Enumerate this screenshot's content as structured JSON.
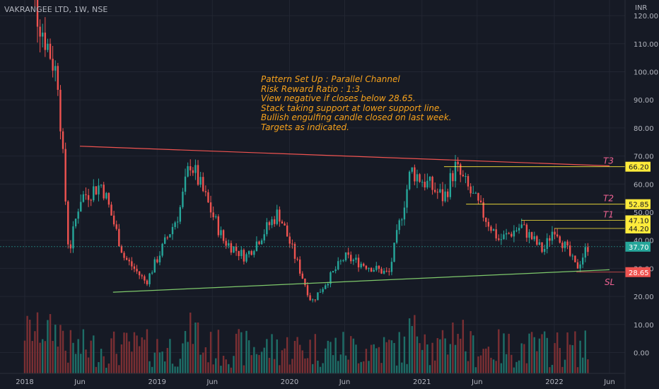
{
  "header": {
    "symbol": "VAKRANGEE LTD, 1W, NSE",
    "currency": "INR"
  },
  "annotation_lines": [
    "Pattern Set Up : Parallel Channel",
    "Risk Reward Ratio : 1:3.",
    "View negative if closes below 28.65.",
    "Stack taking support at lower support line.",
    "Bullish engulfing candle closed on last week.",
    "Targets as indicated."
  ],
  "colors": {
    "background": "#161a25",
    "grid": "#222632",
    "up": "#26a69a",
    "down": "#ef5350",
    "volume_up": "#1e6e67",
    "volume_down": "#7a2f33",
    "resistance_line": "#ef5350",
    "support_line": "#7ec86b",
    "target_label_bg": "#ffeb3b",
    "annotation": "#f7a21b",
    "current_price_bg": "#26a69a",
    "stoploss_bg": "#ef5350"
  },
  "chart_data": {
    "type": "candlestick",
    "title": "VAKRANGEE LTD, 1W, NSE",
    "ylabel": "INR",
    "ylim": [
      -4,
      123
    ],
    "price_ticks": [
      "120.00",
      "110.00",
      "100.00",
      "90.00",
      "80.00",
      "70.00",
      "60.00",
      "50.00",
      "40.00",
      "30.00",
      "20.00",
      "10.00",
      "0.00"
    ],
    "x_ticks": [
      "2018",
      "Jun",
      "2019",
      "Jun",
      "2020",
      "Jun",
      "2021",
      "Jun",
      "2022",
      "Jun"
    ],
    "x_tick_dates": [
      "2018-01",
      "2018-06",
      "2019-01",
      "2019-06",
      "2020-01",
      "2020-06",
      "2021-01",
      "2021-06",
      "2022-01",
      "2022-06"
    ],
    "price_path": [
      {
        "date": "2018-01",
        "value": 135
      },
      {
        "date": "2018-04",
        "value": 98
      },
      {
        "date": "2018-05",
        "value": 35
      },
      {
        "date": "2018-06",
        "value": 55
      },
      {
        "date": "2018-08",
        "value": 60
      },
      {
        "date": "2018-10",
        "value": 34
      },
      {
        "date": "2018-12",
        "value": 25
      },
      {
        "date": "2019-03",
        "value": 50
      },
      {
        "date": "2019-04",
        "value": 68
      },
      {
        "date": "2019-07",
        "value": 40
      },
      {
        "date": "2019-09",
        "value": 34
      },
      {
        "date": "2019-12",
        "value": 50
      },
      {
        "date": "2020-03",
        "value": 18
      },
      {
        "date": "2020-06",
        "value": 34
      },
      {
        "date": "2020-10",
        "value": 28
      },
      {
        "date": "2020-12",
        "value": 65
      },
      {
        "date": "2021-03",
        "value": 55
      },
      {
        "date": "2021-04",
        "value": 66
      },
      {
        "date": "2021-08",
        "value": 40
      },
      {
        "date": "2021-10",
        "value": 45
      },
      {
        "date": "2021-12",
        "value": 36
      },
      {
        "date": "2022-01",
        "value": 45
      },
      {
        "date": "2022-03",
        "value": 30
      },
      {
        "date": "2022-04",
        "value": 37.7
      }
    ],
    "channel_lines": [
      {
        "name": "resistance",
        "from": {
          "date": "2018-06",
          "value": 73.5
        },
        "to": {
          "date": "2022-06",
          "value": 66.5
        }
      },
      {
        "name": "support",
        "from": {
          "date": "2018-09",
          "value": 21.5
        },
        "to": {
          "date": "2022-06",
          "value": 29.5
        }
      }
    ],
    "targets": [
      {
        "name": "T3",
        "value": 66.2,
        "label": "66.20",
        "from": "2021-03"
      },
      {
        "name": "T2",
        "value": 52.85,
        "label": "52.85",
        "from": "2021-05"
      },
      {
        "name": "T1",
        "value": 47.1,
        "label": "47.10",
        "from": "2021-10"
      },
      {
        "name": "",
        "value": 44.2,
        "label": "44.20",
        "from": "2022-01"
      }
    ],
    "current_price": {
      "value": 37.7,
      "label": "37.70"
    },
    "stop_loss": {
      "name": "SL",
      "value": 28.65,
      "label": "28.65"
    }
  }
}
